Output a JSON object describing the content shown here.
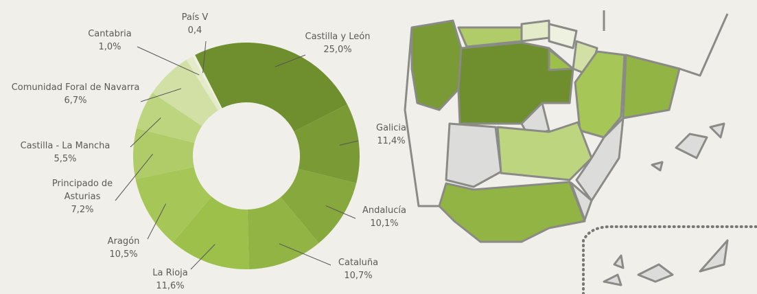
{
  "chart_data": {
    "type": "donut",
    "categories": [
      "Castilla y León",
      "Galicia",
      "Andalucía",
      "Cataluña",
      "La Rioja",
      "Aragón",
      "Principado de Asturias",
      "Castilla - La Mancha",
      "Comunidad Foral de Navarra",
      "Cantabria",
      "País V"
    ],
    "values": [
      25.0,
      11.4,
      10.1,
      10.7,
      11.6,
      10.5,
      7.2,
      5.5,
      6.7,
      1.0,
      0.4
    ],
    "value_labels": [
      "25,0%",
      "11,4%",
      "10,1%",
      "10,7%",
      "11,6%",
      "10,5%",
      "7,2%",
      "5,5%",
      "6,7%",
      "1,0%",
      "0,4"
    ],
    "colors": [
      "#6f8f2e",
      "#7a9a35",
      "#86a83d",
      "#92b444",
      "#9cc04a",
      "#a6c757",
      "#b0cc68",
      "#bdd57f",
      "#d2e0a6",
      "#e3ebc9",
      "#eef0e0"
    ]
  }
}
